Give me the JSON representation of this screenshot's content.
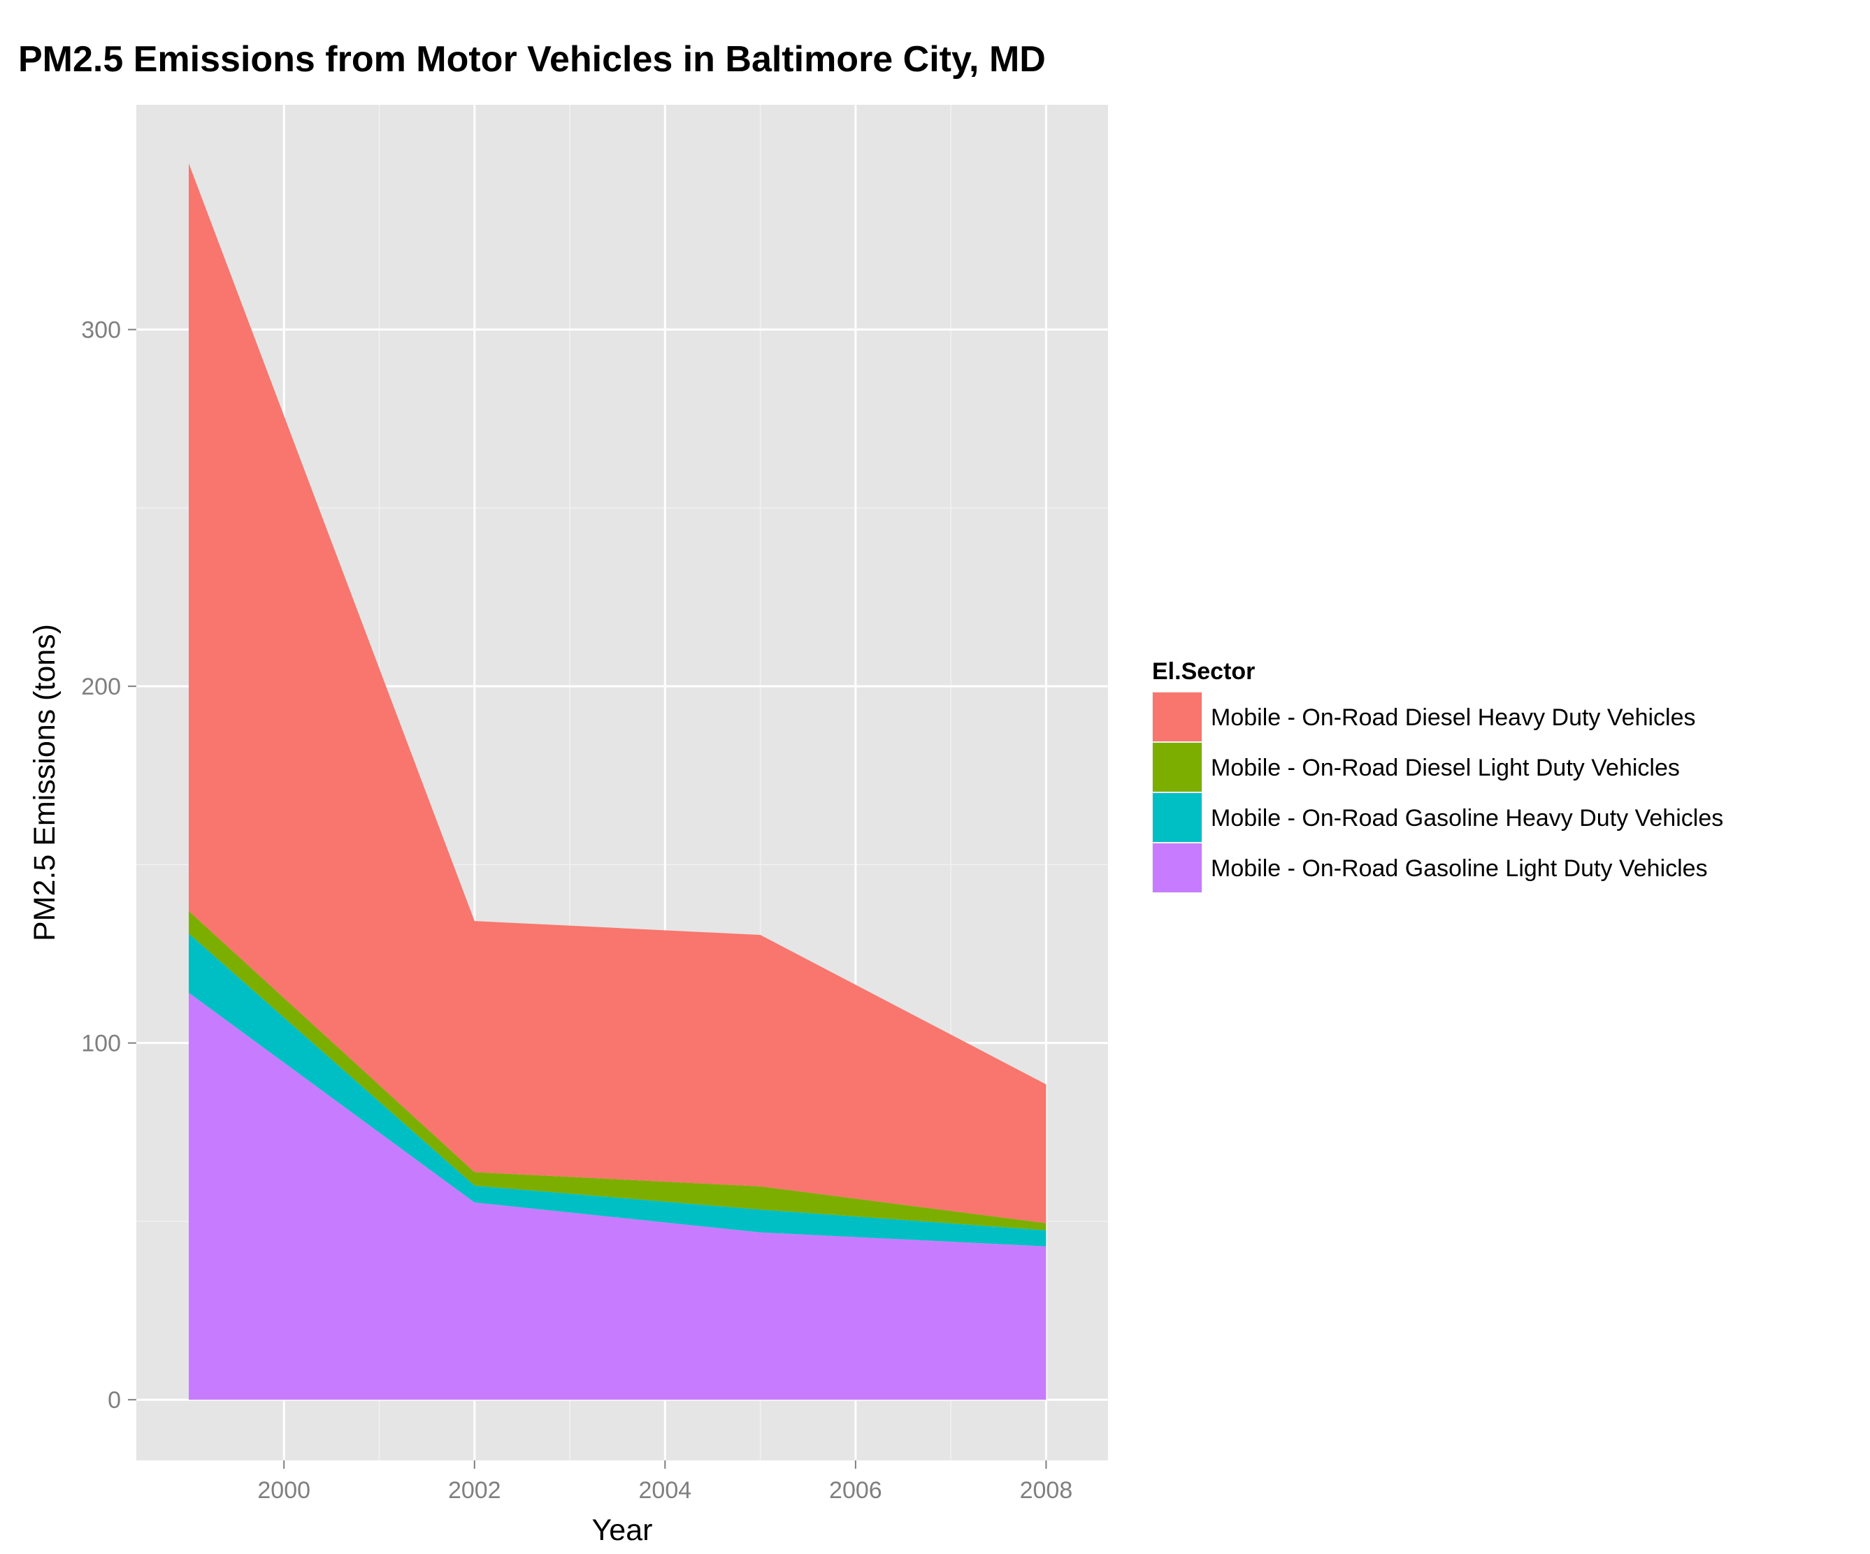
{
  "chart_data": {
    "type": "area",
    "stacked": true,
    "title": "PM2.5 Emissions from Motor Vehicles in Baltimore City, MD",
    "xlabel": "Year",
    "ylabel": "PM2.5 Emissions (tons)",
    "x": [
      1999,
      2002,
      2005,
      2008
    ],
    "xlim": [
      1998.45,
      2008.65
    ],
    "ylim": [
      -17,
      363
    ],
    "xticks": [
      2000,
      2002,
      2004,
      2006,
      2008
    ],
    "xtick_labels": [
      "2000",
      "2002",
      "2004",
      "2006",
      "2008"
    ],
    "yticks": [
      0,
      100,
      200,
      300
    ],
    "ytick_labels": [
      "0",
      "100",
      "200",
      "300"
    ],
    "grid": true,
    "panel_background": "#e5e5e5",
    "legend": {
      "title": "El.Sector",
      "placement": "right"
    },
    "series": [
      {
        "name": "Mobile - On-Road Gasoline Light Duty Vehicles",
        "color": "#c77cff",
        "values": [
          114.1,
          55.3,
          46.9,
          43.0
        ]
      },
      {
        "name": "Mobile - On-Road Gasoline Heavy Duty Vehicles",
        "color": "#00bfc4",
        "values": [
          16.6,
          4.7,
          6.4,
          4.5
        ]
      },
      {
        "name": "Mobile - On-Road Diesel Light Duty Vehicles",
        "color": "#7cae00",
        "values": [
          6.3,
          3.8,
          6.5,
          2.0
        ]
      },
      {
        "name": "Mobile - On-Road Diesel Heavy Duty Vehicles",
        "color": "#f8766d",
        "values": [
          209.6,
          70.4,
          70.5,
          38.9
        ]
      }
    ],
    "legend_order": [
      "Mobile - On-Road Diesel Heavy Duty Vehicles",
      "Mobile - On-Road Diesel Light Duty Vehicles",
      "Mobile - On-Road Gasoline Heavy Duty Vehicles",
      "Mobile - On-Road Gasoline Light Duty Vehicles"
    ]
  }
}
